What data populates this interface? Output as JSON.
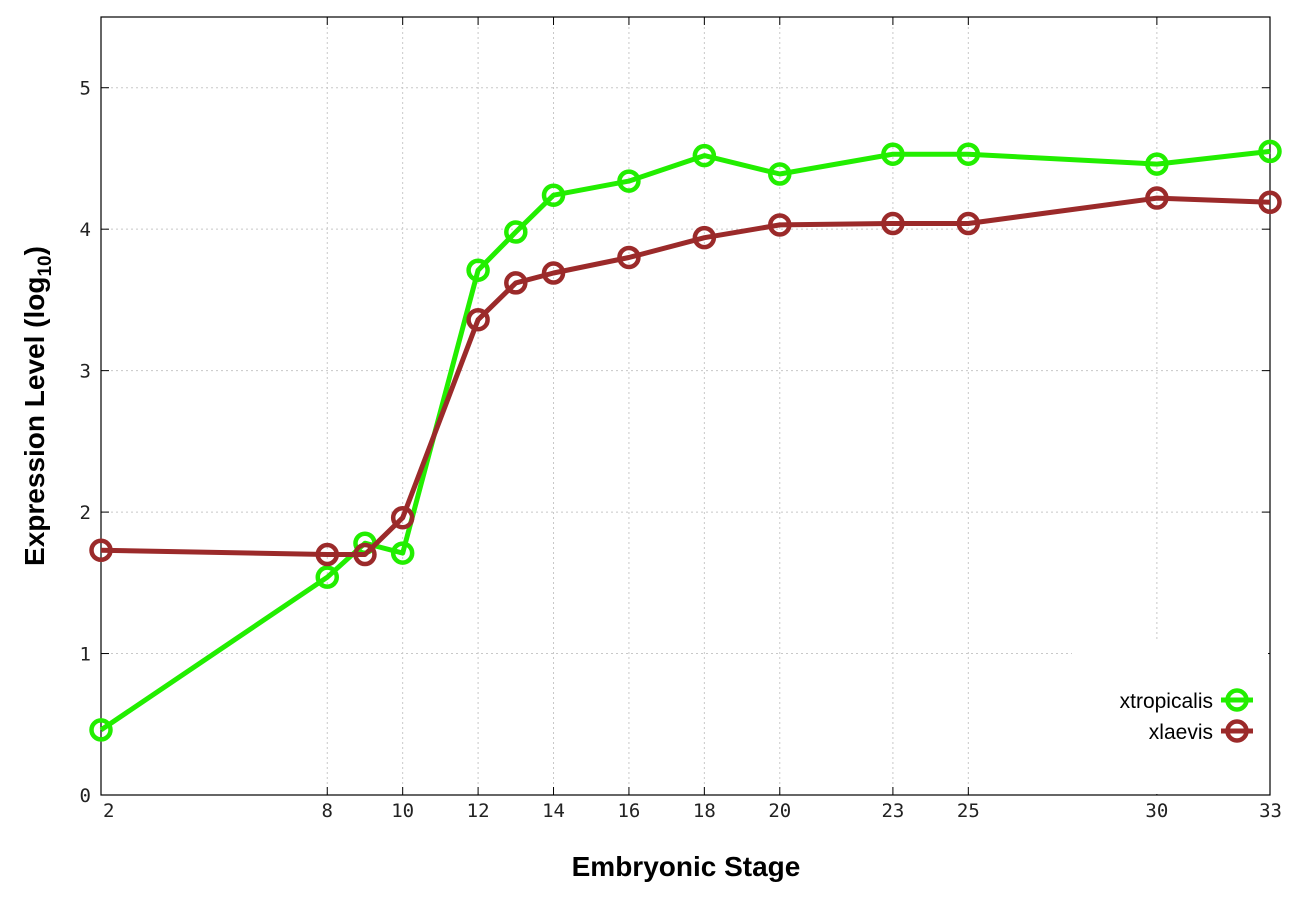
{
  "chart_data": {
    "type": "line",
    "title": "",
    "xlabel": "Embryonic Stage",
    "ylabel_main": "Expression Level (log",
    "ylabel_sub": "10",
    "ylabel_close": ")",
    "x": [
      2,
      8,
      9,
      10,
      12,
      13,
      14,
      16,
      18,
      20,
      23,
      25,
      30,
      33
    ],
    "xticks": [
      2,
      8,
      10,
      12,
      14,
      16,
      18,
      20,
      23,
      25,
      30,
      33
    ],
    "xlim": [
      2,
      33
    ],
    "ylim": [
      0,
      5.5
    ],
    "yticks": [
      0,
      1,
      2,
      3,
      4,
      5
    ],
    "grid": true,
    "legend_position": "bottom-right",
    "series": [
      {
        "name": "xtropicalis",
        "color": "#22ee00",
        "values": [
          0.46,
          1.54,
          1.78,
          1.71,
          3.71,
          3.98,
          4.24,
          4.34,
          4.52,
          4.39,
          4.53,
          4.53,
          4.46,
          4.55
        ]
      },
      {
        "name": "xlaevis",
        "color": "#9b2a2a",
        "values": [
          1.73,
          1.7,
          1.7,
          1.96,
          3.36,
          3.62,
          3.69,
          3.8,
          3.94,
          4.03,
          4.04,
          4.04,
          4.22,
          4.19
        ]
      }
    ]
  }
}
